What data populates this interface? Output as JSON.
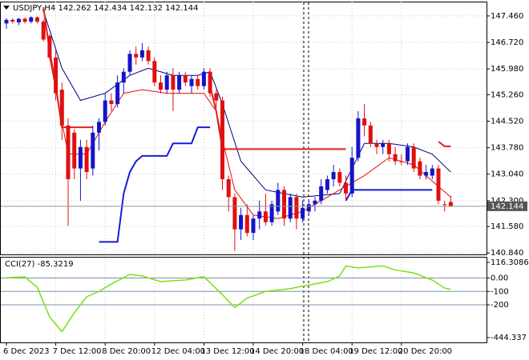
{
  "chart_data": {
    "type": "candlestick",
    "symbol": "USDJPY,H4",
    "up_color": "#1414c8",
    "down_color": "#e01010",
    "open": [
      147.25,
      147.35,
      147.28,
      147.38,
      147.3,
      147.42,
      147.3,
      146.9,
      146.3,
      145.4,
      144.4,
      144.2,
      143.2,
      143.8,
      143.2,
      144.2,
      144.5,
      145.1,
      145.0,
      145.6,
      145.9,
      146.4,
      146.3,
      146.5,
      146.2,
      145.6,
      145.4,
      145.8,
      145.4,
      145.8,
      145.5,
      145.7,
      145.5,
      145.9,
      145.3,
      145.1,
      142.9,
      142.4,
      141.5,
      141.9,
      141.4,
      141.8,
      142.0,
      141.7,
      142.0,
      142.6,
      141.8,
      142.4,
      141.8,
      142.0,
      142.2,
      142.3,
      142.6,
      142.9,
      143.1,
      142.8,
      142.5,
      143.5,
      144.6,
      144.4,
      143.9,
      143.8,
      143.9,
      143.6,
      143.4,
      143.4,
      143.8,
      143.4,
      143.0,
      143.0,
      143.2,
      142.2,
      142.262
    ],
    "high": [
      147.4,
      147.4,
      147.4,
      147.42,
      147.45,
      147.45,
      147.35,
      146.95,
      146.5,
      145.6,
      144.6,
      144.3,
      144.0,
      144.0,
      144.4,
      144.6,
      145.3,
      145.3,
      145.8,
      146.0,
      146.5,
      146.6,
      146.7,
      146.6,
      146.3,
      145.8,
      145.9,
      146.0,
      145.9,
      145.9,
      145.8,
      145.8,
      146.0,
      146.0,
      145.4,
      145.2,
      143.0,
      142.5,
      142.1,
      142.2,
      141.9,
      142.3,
      142.5,
      142.3,
      142.8,
      142.7,
      142.5,
      142.5,
      142.3,
      142.3,
      142.4,
      142.9,
      143.0,
      143.3,
      143.2,
      143.0,
      143.8,
      144.8,
      145.0,
      144.5,
      144.0,
      144.0,
      144.0,
      143.8,
      143.6,
      143.9,
      143.9,
      143.5,
      143.3,
      143.3,
      143.3,
      142.3,
      142.434
    ],
    "low": [
      147.1,
      147.25,
      147.2,
      147.25,
      147.25,
      147.25,
      146.75,
      146.25,
      145.1,
      144.0,
      141.6,
      142.9,
      142.3,
      142.9,
      143.0,
      143.7,
      144.4,
      144.8,
      144.9,
      145.3,
      145.8,
      146.1,
      146.2,
      146.1,
      145.5,
      145.3,
      145.3,
      144.8,
      145.3,
      145.5,
      145.3,
      145.4,
      145.4,
      145.2,
      144.9,
      142.6,
      142.0,
      140.9,
      141.2,
      141.3,
      141.2,
      141.5,
      141.6,
      141.6,
      141.9,
      141.6,
      141.7,
      141.5,
      141.7,
      141.9,
      142.0,
      142.2,
      142.5,
      142.7,
      142.7,
      142.3,
      142.4,
      143.4,
      144.1,
      143.8,
      143.6,
      143.6,
      143.4,
      143.3,
      143.3,
      143.3,
      143.1,
      142.9,
      142.9,
      142.9,
      142.2,
      142.0,
      142.132
    ],
    "close": [
      147.35,
      147.3,
      147.38,
      147.3,
      147.42,
      147.3,
      146.8,
      146.3,
      145.3,
      144.4,
      142.9,
      143.2,
      143.8,
      143.1,
      144.2,
      144.5,
      145.1,
      145.0,
      145.6,
      145.9,
      146.4,
      146.3,
      146.5,
      146.2,
      145.6,
      145.4,
      145.8,
      145.4,
      145.8,
      145.6,
      145.7,
      145.5,
      145.9,
      145.3,
      145.1,
      142.9,
      142.4,
      141.5,
      141.9,
      141.4,
      141.8,
      142.0,
      141.7,
      142.2,
      142.6,
      141.8,
      142.4,
      141.8,
      142.1,
      142.2,
      142.3,
      142.7,
      142.9,
      143.1,
      142.8,
      142.5,
      143.5,
      144.6,
      144.4,
      143.9,
      143.8,
      143.9,
      143.6,
      143.4,
      143.4,
      143.8,
      143.2,
      143.0,
      143.1,
      143.2,
      142.3,
      142.2,
      142.144
    ],
    "categories": [
      "6 Dec 2023",
      null,
      null,
      null,
      null,
      null,
      null,
      null,
      "7 Dec 12:00",
      null,
      null,
      null,
      null,
      null,
      null,
      null,
      "8 Dec 20:00",
      null,
      null,
      null,
      null,
      null,
      null,
      null,
      "12 Dec 04:00",
      null,
      null,
      null,
      null,
      null,
      null,
      null,
      "13 Dec 12:00",
      null,
      null,
      null,
      null,
      null,
      null,
      null,
      "14 Dec 20:00",
      null,
      null,
      null,
      null,
      null,
      null,
      null,
      "18 Dec 04:00",
      null,
      null,
      null,
      null,
      null,
      null,
      null,
      "19 Dec 12:00",
      null,
      null,
      null,
      null,
      null,
      null,
      null,
      "20 Dec 20:00",
      null,
      null,
      null,
      null,
      null,
      null,
      null,
      null
    ],
    "ylim": [
      140.8,
      147.86
    ],
    "yticks": [
      {
        "value": 147.46,
        "label": "147.460"
      },
      {
        "value": 146.72,
        "label": "146.720"
      },
      {
        "value": 145.98,
        "label": "145.980"
      },
      {
        "value": 145.26,
        "label": "145.260"
      },
      {
        "value": 144.52,
        "label": "144.520"
      },
      {
        "value": 143.78,
        "label": "143.780"
      },
      {
        "value": 143.04,
        "label": "143.040"
      },
      {
        "value": 142.3,
        "label": "142.300"
      },
      {
        "value": 141.58,
        "label": "141.580"
      },
      {
        "value": 140.84,
        "label": "140.840"
      }
    ],
    "grid": true,
    "lines": [
      {
        "color": "#000080",
        "width": 1,
        "x": [
          6,
          9,
          12,
          16,
          20,
          23,
          27,
          31,
          33,
          35,
          38,
          42,
          48,
          54,
          56,
          58,
          62,
          66,
          69,
          72
        ],
        "values": [
          147.6,
          146.0,
          145.1,
          145.3,
          145.8,
          146.0,
          145.8,
          145.8,
          145.9,
          145.0,
          143.4,
          142.6,
          142.4,
          142.5,
          143.2,
          143.9,
          143.9,
          143.8,
          143.6,
          143.1
        ]
      },
      {
        "color": "#e01010",
        "width": 1,
        "x": [
          7,
          10,
          13,
          16,
          19,
          22,
          26,
          32,
          34,
          35,
          37,
          40,
          44,
          48,
          52,
          56,
          58,
          62,
          66,
          70,
          72
        ],
        "values": [
          146.3,
          143.6,
          143.6,
          144.5,
          145.3,
          145.4,
          145.3,
          145.3,
          144.8,
          144.0,
          142.6,
          141.9,
          141.8,
          142.0,
          142.4,
          142.8,
          143.0,
          143.5,
          143.3,
          142.7,
          142.4
        ]
      },
      {
        "color": "#1a1ad8",
        "width": 2,
        "x": [
          15,
          18,
          19,
          20,
          21,
          22,
          26,
          27,
          30,
          31,
          33,
          34,
          55,
          56,
          69
        ],
        "values": [
          141.15,
          141.15,
          142.5,
          143.1,
          143.4,
          143.55,
          143.55,
          143.9,
          143.9,
          144.35,
          144.35,
          null,
          142.3,
          142.6,
          142.6
        ]
      },
      {
        "color": "#e02020",
        "width": 2,
        "x": [
          6,
          7,
          8,
          9,
          14,
          15,
          33,
          34,
          35,
          55,
          56,
          70,
          71,
          72
        ],
        "values": [
          147.7,
          146.5,
          145.5,
          144.35,
          144.35,
          null,
          145.5,
          144.8,
          143.74,
          143.74,
          null,
          143.95,
          143.82,
          143.82
        ]
      }
    ],
    "cci": {
      "label": "CCI(27)",
      "color": "#7ce010",
      "x": [
        0,
        3,
        5,
        7,
        9,
        11,
        13,
        15,
        17,
        20,
        22,
        25,
        29,
        32,
        35,
        37,
        39,
        42,
        46,
        48,
        52,
        54,
        55,
        57,
        61,
        63,
        66,
        69,
        71,
        72
      ],
      "values": [
        2,
        8,
        -70,
        -290,
        -400,
        -260,
        -140,
        -100,
        -45,
        27,
        15,
        -27,
        -15,
        10,
        -125,
        -220,
        -150,
        -100,
        -80,
        -60,
        -27,
        15,
        90,
        75,
        90,
        60,
        38,
        -15,
        -75,
        -85.3219
      ],
      "ylim": [
        -444.337,
        116.3086
      ],
      "yticks": [
        116.3086,
        {
          "value": 0,
          "label": "0.00"
        },
        -100,
        -200,
        -444.337
      ]
    }
  }
}
